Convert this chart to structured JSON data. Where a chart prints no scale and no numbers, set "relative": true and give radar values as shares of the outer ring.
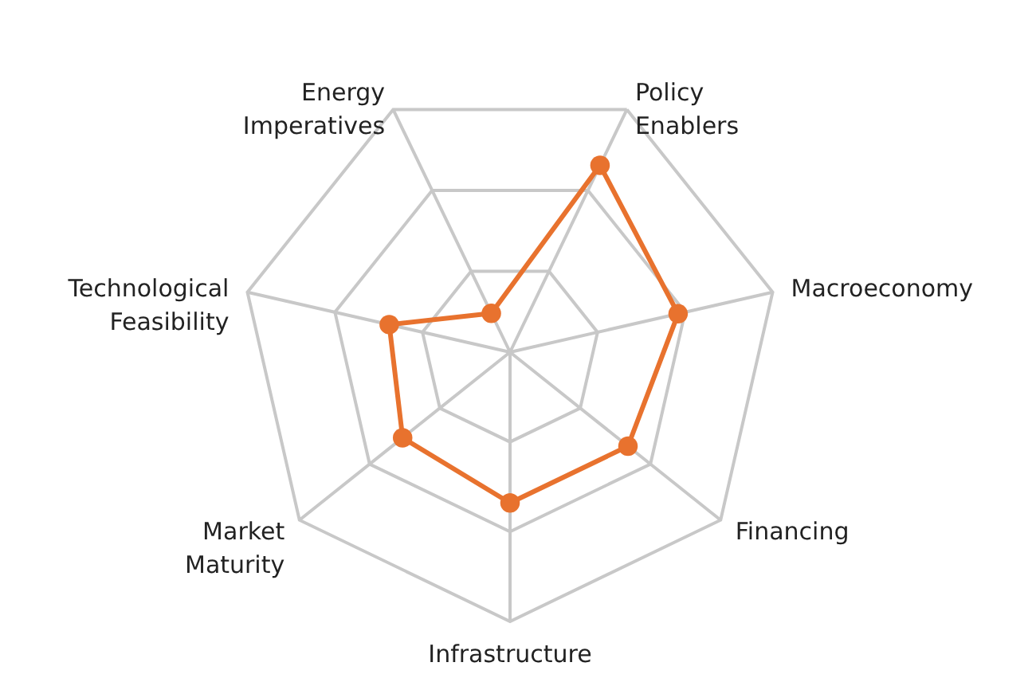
{
  "chart_data": {
    "type": "radar",
    "relative": true,
    "grid": true,
    "marker": "circle",
    "categories": [
      "Policy Enablers",
      "Macroeconomy",
      "Financing",
      "Infrastructure",
      "Market Maturity",
      "Technological Feasibility",
      "Energy Imperatives"
    ],
    "series": [
      {
        "color": "#e8722e",
        "values": [
          0.77,
          0.64,
          0.56,
          0.56,
          0.51,
          0.46,
          0.16
        ]
      }
    ]
  }
}
